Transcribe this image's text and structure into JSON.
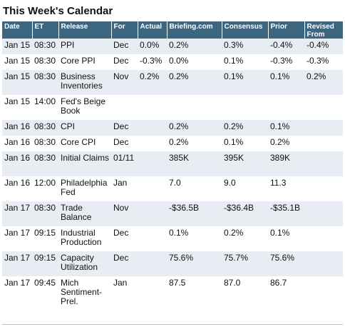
{
  "title": "This Week's Calendar",
  "columns": [
    "Date",
    "ET",
    "Release",
    "For",
    "Actual",
    "Briefing.com",
    "Consensus",
    "Prior",
    "Revised From"
  ],
  "rows": [
    {
      "date": "Jan 15",
      "et": "08:30",
      "release": "PPI",
      "for": "Dec",
      "actual": "0.0%",
      "briefing": "0.2%",
      "consensus": "0.3%",
      "prior": "-0.4%",
      "revised": "-0.4%"
    },
    {
      "date": "Jan 15",
      "et": "08:30",
      "release": "Core PPI",
      "for": "Dec",
      "actual": "-0.3%",
      "briefing": "0.0%",
      "consensus": "0.1%",
      "prior": "-0.3%",
      "revised": "-0.3%"
    },
    {
      "date": "Jan 15",
      "et": "08:30",
      "release": "Business Inventories",
      "for": "Nov",
      "actual": "0.2%",
      "briefing": "0.2%",
      "consensus": "0.1%",
      "prior": "0.1%",
      "revised": "0.2%"
    },
    {
      "date": "Jan 15",
      "et": "14:00",
      "release": "Fed's Beige Book",
      "for": "",
      "actual": "",
      "briefing": "",
      "consensus": "",
      "prior": "",
      "revised": ""
    },
    {
      "date": "Jan 16",
      "et": "08:30",
      "release": "CPI",
      "for": "Dec",
      "actual": "",
      "briefing": "0.2%",
      "consensus": "0.2%",
      "prior": "0.1%",
      "revised": ""
    },
    {
      "date": "Jan 16",
      "et": "08:30",
      "release": "Core CPI",
      "for": "Dec",
      "actual": "",
      "briefing": "0.2%",
      "consensus": "0.1%",
      "prior": "0.2%",
      "revised": ""
    },
    {
      "date": "Jan 16",
      "et": "08:30",
      "release": "Initial Claims",
      "for": "01/11",
      "actual": "",
      "briefing": "385K",
      "consensus": "395K",
      "prior": "389K",
      "revised": ""
    },
    {
      "date": "Jan 16",
      "et": "12:00",
      "release": "Philadelphia Fed",
      "for": "Jan",
      "actual": "",
      "briefing": "7.0",
      "consensus": "9.0",
      "prior": "11.3",
      "revised": ""
    },
    {
      "date": "Jan 17",
      "et": "08:30",
      "release": "Trade Balance",
      "for": "Nov",
      "actual": "",
      "briefing": "-$36.5B",
      "consensus": "-$36.4B",
      "prior": "-$35.1B",
      "revised": ""
    },
    {
      "date": "Jan 17",
      "et": "09:15",
      "release": "Industrial Production",
      "for": "Dec",
      "actual": "",
      "briefing": "0.1%",
      "consensus": "0.2%",
      "prior": "0.1%",
      "revised": ""
    },
    {
      "date": "Jan 17",
      "et": "09:15",
      "release": "Capacity Utilization",
      "for": "Dec",
      "actual": "",
      "briefing": "75.6%",
      "consensus": "75.7%",
      "prior": "75.6%",
      "revised": ""
    },
    {
      "date": "Jan 17",
      "et": "09:45",
      "release": "Mich Sentiment-Prel.",
      "for": "Jan",
      "actual": "",
      "briefing": "87.5",
      "consensus": "87.0",
      "prior": "86.7",
      "revised": ""
    }
  ],
  "colors": {
    "header_bg": "#3c6580",
    "row_shade": "#e7edf2",
    "row_plain": "#ffffff"
  }
}
